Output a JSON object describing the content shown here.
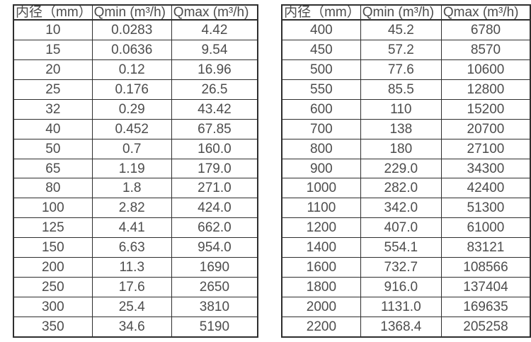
{
  "page": {
    "background": "#ffffff",
    "border_color": "#2e2e2e",
    "text_color": "#4d4d4d"
  },
  "tables": [
    {
      "name": "flow-range-table-dn10-350",
      "headers": [
        "内径（mm）",
        "Qmin (m³/h)",
        "Qmax (m³/h)"
      ],
      "rows": [
        [
          "10",
          "0.0283",
          "4.42"
        ],
        [
          "15",
          "0.0636",
          "9.54"
        ],
        [
          "20",
          "0.12",
          "16.96"
        ],
        [
          "25",
          "0.176",
          "26.5"
        ],
        [
          "32",
          "0.29",
          "43.42"
        ],
        [
          "40",
          "0.452",
          "67.85"
        ],
        [
          "50",
          "0.7",
          "160.0"
        ],
        [
          "65",
          "1.19",
          "179.0"
        ],
        [
          "80",
          "1.8",
          "271.0"
        ],
        [
          "100",
          "2.82",
          "424.0"
        ],
        [
          "125",
          "4.41",
          "662.0"
        ],
        [
          "150",
          "6.63",
          "954.0"
        ],
        [
          "200",
          "11.3",
          "1690"
        ],
        [
          "250",
          "17.6",
          "2650"
        ],
        [
          "300",
          "25.4",
          "3810"
        ],
        [
          "350",
          "34.6",
          "5190"
        ]
      ]
    },
    {
      "name": "flow-range-table-dn400-2200",
      "headers": [
        "内径（mm）",
        "Qmin (m³/h)",
        "Qmax (m³/h)"
      ],
      "rows": [
        [
          "400",
          "45.2",
          "6780"
        ],
        [
          "450",
          "57.2",
          "8570"
        ],
        [
          "500",
          "77.6",
          "10600"
        ],
        [
          "550",
          "85.5",
          "12800"
        ],
        [
          "600",
          "110",
          "15200"
        ],
        [
          "700",
          "138",
          "20700"
        ],
        [
          "800",
          "180",
          "27100"
        ],
        [
          "900",
          "229.0",
          "34300"
        ],
        [
          "1000",
          "282.0",
          "42400"
        ],
        [
          "1100",
          "342.0",
          "51300"
        ],
        [
          "1200",
          "407.0",
          "61000"
        ],
        [
          "1400",
          "554.1",
          "83121"
        ],
        [
          "1600",
          "732.7",
          "108566"
        ],
        [
          "1800",
          "916.0",
          "137404"
        ],
        [
          "2000",
          "1131.0",
          "169635"
        ],
        [
          "2200",
          "1368.4",
          "205258"
        ]
      ]
    }
  ]
}
